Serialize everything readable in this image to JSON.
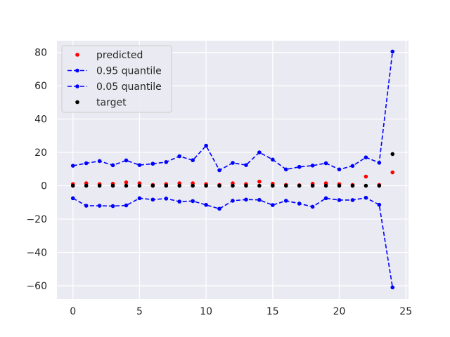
{
  "chart_data": {
    "type": "scatter",
    "title": "",
    "xlabel": "",
    "ylabel": "",
    "xlim": [
      -1.2,
      25.2
    ],
    "ylim": [
      -68,
      87
    ],
    "xticks": [
      0,
      5,
      10,
      15,
      20,
      25
    ],
    "yticks": [
      -60,
      -40,
      -20,
      0,
      20,
      40,
      60,
      80
    ],
    "grid": true,
    "legend_position": "top-left",
    "x": [
      0,
      1,
      2,
      3,
      4,
      5,
      6,
      7,
      8,
      9,
      10,
      11,
      12,
      13,
      14,
      15,
      16,
      17,
      18,
      19,
      20,
      21,
      22,
      23,
      24
    ],
    "series": [
      {
        "name": "predicted",
        "style": "points",
        "color": "#ff0000",
        "values": [
          1.0,
          1.5,
          1.0,
          1.2,
          2.0,
          1.5,
          0.5,
          1.0,
          1.5,
          1.5,
          1.0,
          0.5,
          1.5,
          1.0,
          2.5,
          1.2,
          0.5,
          0.3,
          1.2,
          1.5,
          1.0,
          0.5,
          5.5,
          0.5,
          8.0
        ]
      },
      {
        "name": "0.95 quantile",
        "style": "dashed-line-markers",
        "color": "#0000ff",
        "values": [
          12.0,
          13.5,
          14.8,
          12.3,
          15.2,
          12.4,
          13.2,
          14.2,
          17.7,
          15.3,
          24.0,
          9.3,
          13.7,
          12.4,
          20.0,
          15.7,
          9.8,
          11.3,
          12.1,
          13.5,
          9.8,
          11.9,
          17.0,
          13.8,
          80.5
        ]
      },
      {
        "name": "0.05 quantile",
        "style": "dashed-line-markers",
        "color": "#0000ff",
        "values": [
          -7.5,
          -12.0,
          -12.0,
          -12.2,
          -11.8,
          -7.5,
          -8.3,
          -7.7,
          -9.5,
          -9.2,
          -11.5,
          -13.8,
          -9.0,
          -8.3,
          -8.5,
          -11.6,
          -9.0,
          -10.7,
          -12.6,
          -7.5,
          -8.6,
          -8.6,
          -7.2,
          -11.4,
          -61.0
        ]
      },
      {
        "name": "target",
        "style": "points",
        "color": "#000000",
        "values": [
          0,
          0,
          0,
          0,
          0,
          0,
          0,
          0,
          0,
          0,
          0,
          0,
          0,
          0,
          0,
          0,
          0,
          0,
          0,
          0,
          0,
          0,
          0,
          0,
          19.0
        ]
      }
    ]
  },
  "colors": {
    "plot_background": "#eaeaf2",
    "grid": "#ffffff",
    "legend_background": "#eaeaf2",
    "legend_border": "#cccccc"
  }
}
